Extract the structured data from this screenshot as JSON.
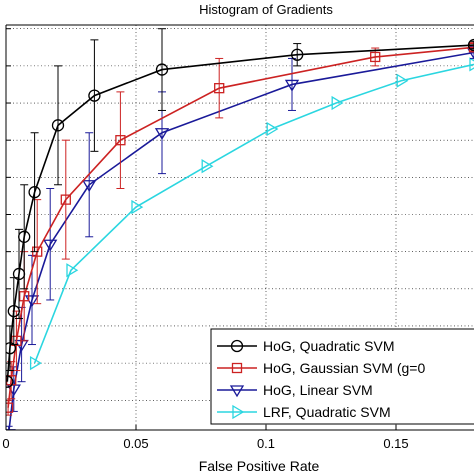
{
  "chart_data": {
    "type": "line",
    "title": "Histogram of Gradients",
    "xlabel": "False Positive Rate",
    "ylabel": "",
    "xlim": [
      0,
      0.18
    ],
    "ylim": [
      0.46,
      1.005
    ],
    "x_ticks": [
      0,
      0.05,
      0.1,
      0.15
    ],
    "x_tick_labels": [
      "0",
      "0.05",
      "0.1",
      "0.15"
    ],
    "y_ticks": [
      0.5,
      0.55,
      0.6,
      0.65,
      0.7,
      0.75,
      0.8,
      0.85,
      0.9,
      0.95,
      1.0
    ],
    "grid": true,
    "legend_position": "bottom-right",
    "series": [
      {
        "name": "HoG, Quadratic SVM",
        "color": "#000000",
        "marker": "circle",
        "x": [
          0.0005,
          0.0015,
          0.003,
          0.005,
          0.007,
          0.011,
          0.02,
          0.034,
          0.06,
          0.112,
          0.18
        ],
        "y": [
          0.525,
          0.57,
          0.62,
          0.67,
          0.72,
          0.78,
          0.87,
          0.91,
          0.945,
          0.965,
          0.978
        ],
        "err": [
          0,
          0.03,
          0.045,
          0.06,
          0.07,
          0.08,
          0.08,
          0.075,
          0.055,
          0.015,
          0.005
        ]
      },
      {
        "name": "HoG, Gaussian SVM (g=0",
        "color": "#cc2222",
        "marker": "square",
        "x": [
          0.0008,
          0.002,
          0.004,
          0.007,
          0.012,
          0.023,
          0.044,
          0.082,
          0.142,
          0.18
        ],
        "y": [
          0.49,
          0.527,
          0.58,
          0.64,
          0.7,
          0.77,
          0.85,
          0.92,
          0.962,
          0.975
        ],
        "err": [
          0.01,
          0.025,
          0.04,
          0.06,
          0.07,
          0.08,
          0.065,
          0.04,
          0.012,
          0.005
        ]
      },
      {
        "name": "HoG, Linear SVM",
        "color": "#1a1a99",
        "marker": "triangle-down",
        "x": [
          0.001,
          0.003,
          0.006,
          0.01,
          0.017,
          0.032,
          0.06,
          0.11,
          0.18
        ],
        "y": [
          0.455,
          0.515,
          0.575,
          0.635,
          0.71,
          0.79,
          0.86,
          0.925,
          0.968
        ],
        "err": [
          0.01,
          0.03,
          0.05,
          0.06,
          0.075,
          0.07,
          0.055,
          0.035,
          0.008
        ]
      },
      {
        "name": "LRF, Quadratic SVM",
        "color": "#2bd6e0",
        "marker": "triangle-right",
        "x": [
          0.011,
          0.025,
          0.05,
          0.077,
          0.102,
          0.127,
          0.152,
          0.18
        ],
        "y": [
          0.55,
          0.675,
          0.76,
          0.815,
          0.865,
          0.9,
          0.93,
          0.952
        ],
        "err": [
          0,
          0,
          0,
          0,
          0,
          0,
          0,
          0
        ]
      }
    ]
  }
}
